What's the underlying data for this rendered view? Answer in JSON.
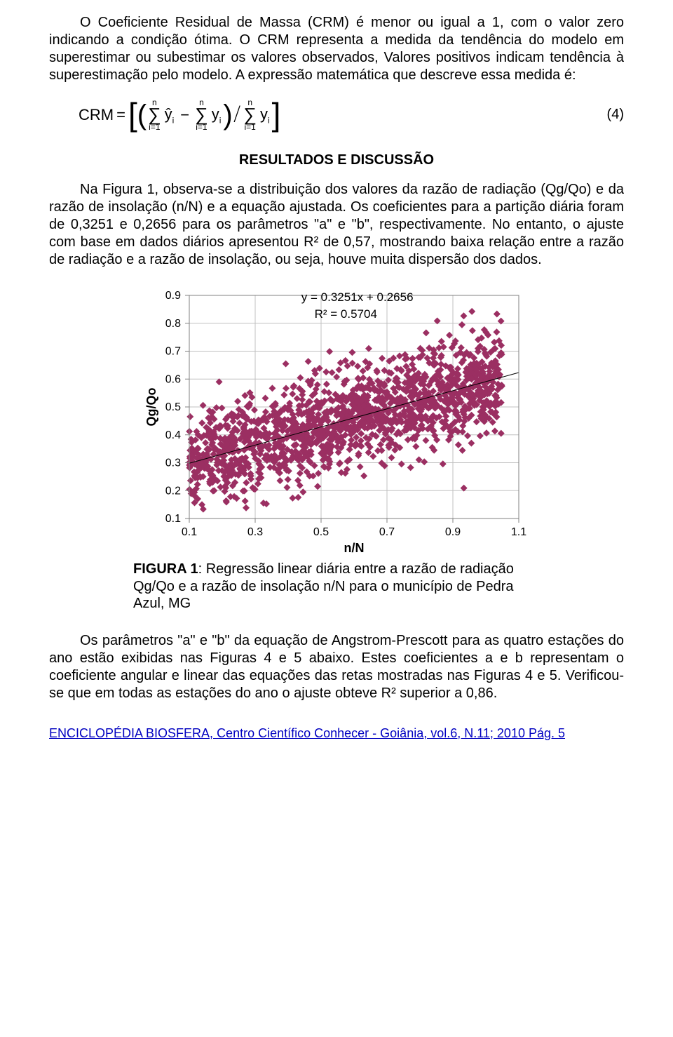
{
  "para1": "O Coeficiente Residual de Massa (CRM) é menor ou igual a 1, com o valor zero indicando a condição ótima. O CRM representa a medida da tendência do modelo em superestimar ou subestimar os valores observados, Valores positivos indicam tendência à superestimação pelo modelo. A expressão matemática que descreve essa medida é:",
  "eq_crm_prefix": "CRM",
  "eq_number": "(4)",
  "sum_lower": "i=1",
  "sum_upper": "n",
  "yhat": "ŷ",
  "yvar": "y",
  "sub_i": "i",
  "section_title": "RESULTADOS E DISCUSSÃO",
  "para2": "Na Figura 1, observa-se a distribuição dos valores da razão de radiação (Qg/Qo) e da razão de insolação (n/N) e a equação ajustada. Os coeficientes para a partição diária foram de 0,3251 e 0,2656 para os parâmetros \"a\" e \"b\", respectivamente. No entanto, o ajuste com base em dados diários apresentou R² de 0,57, mostrando baixa relação entre a razão de radiação e a razão de insolação, ou seja, houve muita dispersão dos dados.",
  "chart": {
    "type": "scatter",
    "x_label": "n/N",
    "y_label": "Qg/Qo",
    "eq_text": "y = 0.3251x + 0.2656",
    "r2_text": "R² = 0.5704",
    "x_ticks": [
      0.1,
      0.3,
      0.5,
      0.7,
      0.9,
      1.1
    ],
    "y_ticks": [
      0.1,
      0.2,
      0.3,
      0.4,
      0.5,
      0.6,
      0.7,
      0.8,
      0.9
    ],
    "xlim": [
      0.1,
      1.1
    ],
    "ylim": [
      0.1,
      0.9
    ],
    "grid_color": "#c0c0c0",
    "border_color": "#808080",
    "background_color": "#ffffff",
    "marker_color": "#9b2f62",
    "marker_size": 5,
    "trend_a": 0.3251,
    "trend_b": 0.2656,
    "tick_fontsize": 16,
    "label_fontsize": 18,
    "n_points": 1600
  },
  "caption_label": "FIGURA 1",
  "caption_text": ": Regressão linear diária entre a razão de radiação Qg/Qo e a razão de insolação n/N para o município de Pedra Azul, MG",
  "para3": "Os parâmetros \"a\" e \"b\" da equação de Angstrom-Prescott para as quatro estações do ano estão exibidas nas Figuras 4 e 5 abaixo. Estes coeficientes a e b representam o coeficiente angular e linear das equações das retas mostradas nas Figuras 4 e 5. Verificou-se que em todas as estações do ano o ajuste obteve R² superior a 0,86.",
  "footer_text": "ENCICLOPÉDIA BIOSFERA, Centro Científico Conhecer - Goiânia, vol.6, N.11; 2010 Pág. 5"
}
